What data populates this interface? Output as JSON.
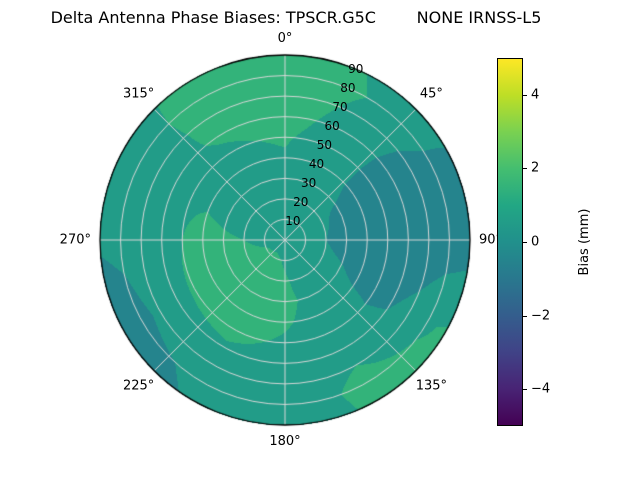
{
  "title": "Delta Antenna Phase Biases: TPSCR.G5C        NONE IRNSS-L5",
  "chart_data": {
    "type": "heatmap",
    "projection": "polar-skyplot",
    "title": "Delta Antenna Phase Biases: TPSCR.G5C        NONE IRNSS-L5",
    "grid": true,
    "angular_ticks": [
      "0°",
      "45°",
      "90°",
      "135°",
      "180°",
      "225°",
      "270°",
      "315°"
    ],
    "angular_tick_values": [
      0,
      45,
      90,
      135,
      180,
      225,
      270,
      315
    ],
    "radial_ticks": [
      10,
      20,
      30,
      40,
      50,
      60,
      70,
      80,
      90
    ],
    "radial_max": 90,
    "radial_label_angle_deg": 22.5,
    "contour_level_step_mm": 1,
    "azimuth_deg": [
      0,
      30,
      60,
      90,
      120,
      150,
      180,
      210,
      240,
      270,
      300,
      330
    ],
    "zenith_deg": [
      0,
      10,
      20,
      30,
      40,
      50,
      60,
      70,
      80,
      90
    ],
    "bias_mm": [
      [
        0.5,
        0.5,
        0.5,
        0.5,
        0.5,
        0.5,
        0.5,
        0.5,
        0.5,
        0.5,
        0.5,
        0.5
      ],
      [
        0.6,
        0.5,
        0.3,
        0.2,
        0.3,
        0.5,
        0.9,
        1.2,
        1.1,
        0.8,
        0.6,
        0.6
      ],
      [
        0.7,
        0.4,
        0.1,
        0.0,
        0.2,
        0.6,
        1.1,
        1.4,
        1.3,
        1.0,
        0.7,
        0.6
      ],
      [
        0.8,
        0.4,
        -0.1,
        -0.3,
        0.1,
        0.7,
        1.2,
        1.4,
        1.3,
        1.1,
        0.8,
        0.7
      ],
      [
        0.9,
        0.4,
        -0.3,
        -0.5,
        -0.1,
        0.6,
        1.1,
        1.4,
        1.3,
        1.2,
        0.9,
        0.8
      ],
      [
        1.1,
        0.5,
        -0.4,
        -0.6,
        -0.2,
        0.5,
        0.9,
        1.2,
        1.1,
        1.0,
        0.9,
        0.9
      ],
      [
        1.4,
        0.6,
        -0.4,
        -0.7,
        -0.1,
        0.6,
        0.7,
        0.9,
        0.7,
        0.7,
        0.8,
        1.1
      ],
      [
        1.6,
        0.8,
        -0.3,
        -0.7,
        0.3,
        1.0,
        0.5,
        0.5,
        0.2,
        0.4,
        0.6,
        1.3
      ],
      [
        1.7,
        1.0,
        -0.1,
        -0.6,
        0.9,
        1.3,
        0.4,
        0.2,
        -0.3,
        0.2,
        0.5,
        1.5
      ],
      [
        1.7,
        0.9,
        0.0,
        -0.5,
        1.1,
        1.2,
        0.3,
        0.1,
        -0.5,
        0.1,
        0.4,
        1.5
      ]
    ],
    "colorbar": {
      "label": "Bias (mm)",
      "vmin": -5,
      "vmax": 5,
      "tick_values": [
        4,
        2,
        0,
        -2,
        -4
      ],
      "tick_labels": [
        "4",
        "2",
        "0",
        "−2",
        "−4"
      ],
      "position": "right"
    },
    "colormap": {
      "name": "viridis",
      "stops": [
        [
          0.0,
          "#440154"
        ],
        [
          0.1,
          "#482475"
        ],
        [
          0.2,
          "#404387"
        ],
        [
          0.3,
          "#345e8d"
        ],
        [
          0.4,
          "#29788e"
        ],
        [
          0.5,
          "#21908c"
        ],
        [
          0.6,
          "#22a784"
        ],
        [
          0.7,
          "#44be70"
        ],
        [
          0.8,
          "#79d151"
        ],
        [
          0.9,
          "#bdde26"
        ],
        [
          1.0,
          "#fde725"
        ]
      ]
    },
    "gridline_color": "#d8d8d8",
    "background_color": "#ffffff"
  }
}
